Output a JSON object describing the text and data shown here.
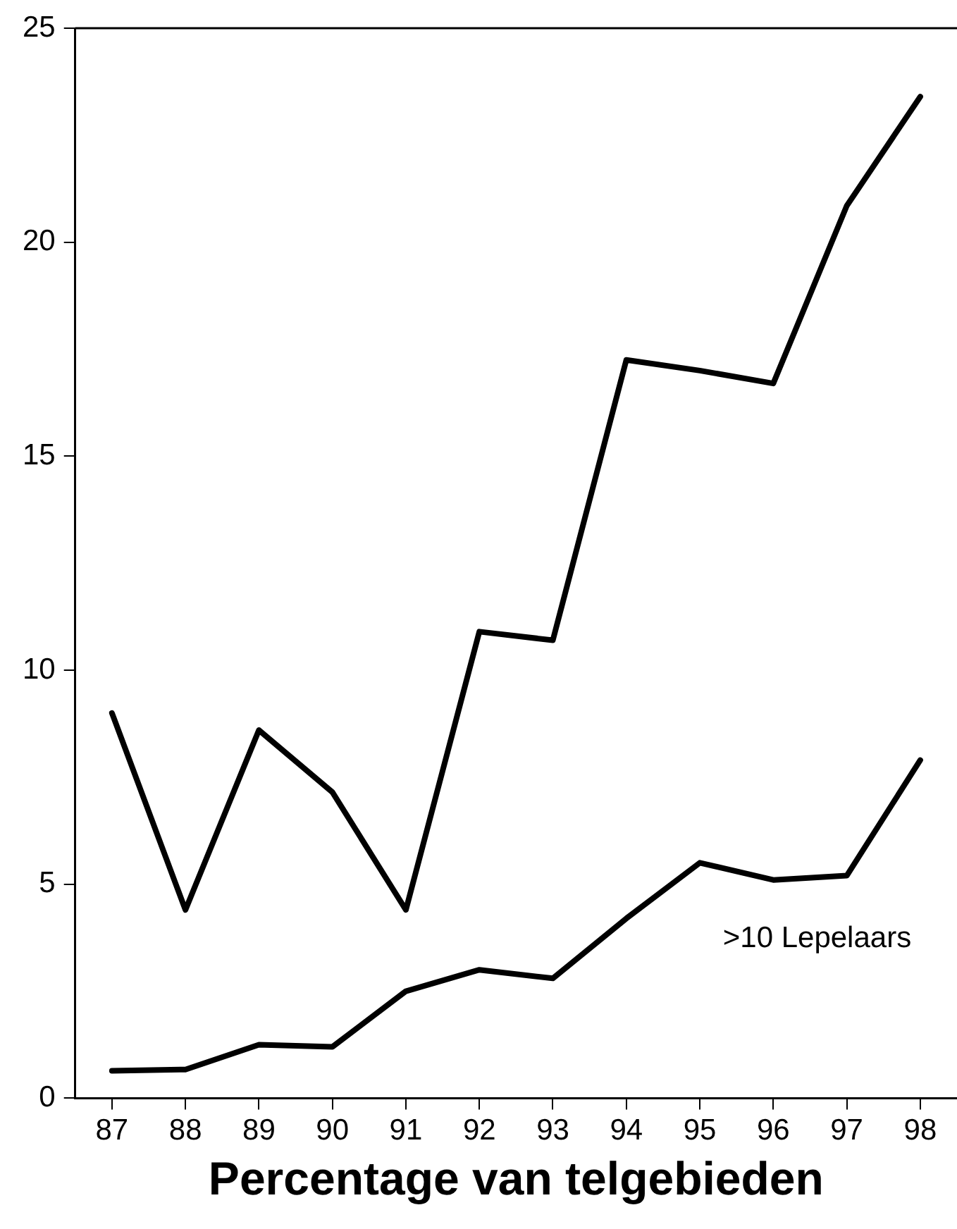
{
  "chart_data": {
    "type": "line",
    "xlabel": "Percentage van telgebieden",
    "categories": [
      "87",
      "88",
      "89",
      "90",
      "91",
      "92",
      "93",
      "94",
      "95",
      "96",
      "97",
      "98"
    ],
    "series": [
      {
        "color": "#000000",
        "values": [
          9.0,
          4.4,
          8.6,
          7.15,
          4.4,
          10.9,
          10.7,
          17.25,
          17.0,
          16.7,
          20.85,
          23.4
        ]
      },
      {
        "name": ">10 Lepelaars",
        "color": "#000000",
        "values": [
          0.64,
          0.67,
          1.25,
          1.2,
          2.5,
          3.0,
          2.8,
          4.2,
          5.5,
          5.1,
          5.2,
          7.9
        ]
      }
    ],
    "ylim": [
      0,
      25
    ],
    "yticks": [
      0,
      5,
      10,
      15,
      20,
      25
    ],
    "grid": false,
    "legend": false,
    "marker": "none",
    "line_style": "solid"
  }
}
